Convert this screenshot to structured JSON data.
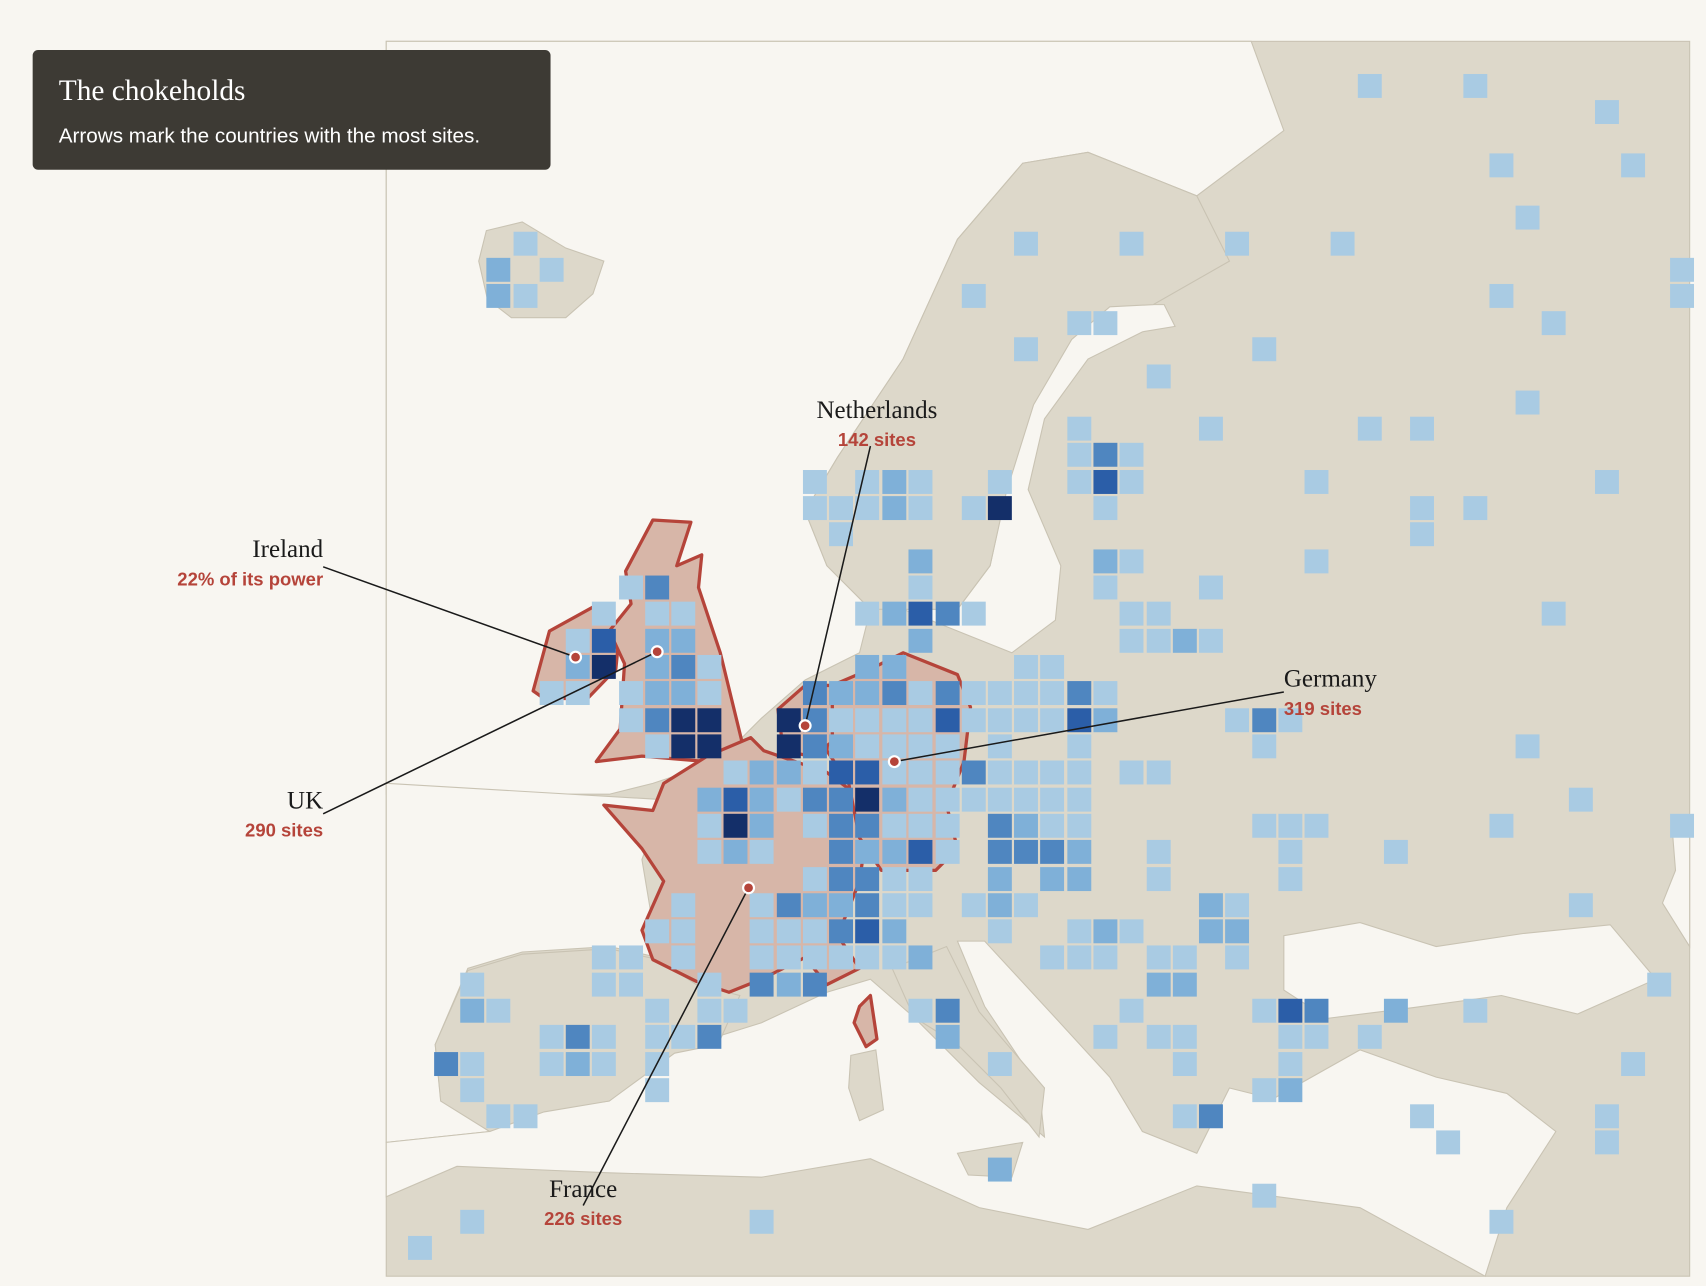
{
  "header": {
    "title": "The chokeholds",
    "subtitle": "Arrows mark the countries with the most sites."
  },
  "annotations": [
    {
      "country": "Netherlands",
      "stat": "142 sites"
    },
    {
      "country": "Ireland",
      "stat": "22% of its power"
    },
    {
      "country": "UK",
      "stat": "290 sites"
    },
    {
      "country": "Germany",
      "stat": "319 sites"
    },
    {
      "country": "France",
      "stat": "226 sites"
    }
  ]
}
